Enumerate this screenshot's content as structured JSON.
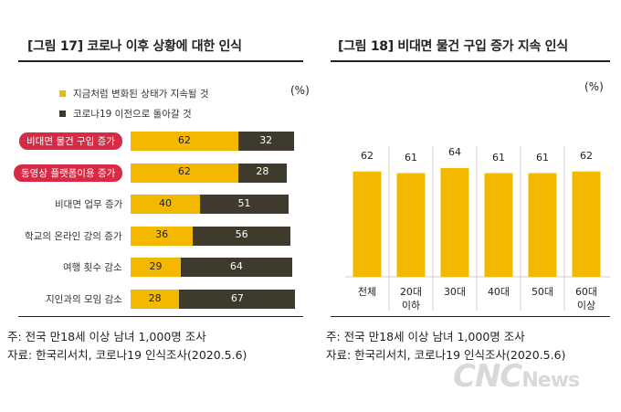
{
  "left": {
    "title": "[그림 17] 코로나 이후 상황에 대한 인식",
    "unit": "(%)",
    "legend": [
      {
        "label": "지금처럼 변화된 상태가 지속될 것",
        "color": "#f5b800"
      },
      {
        "label": "코로나19 이전으로 돌아갈 것",
        "color": "#3e3a2c"
      }
    ],
    "notes": [
      "주: 전국 만18세 이상 남녀 1,000명 조사",
      "자료: 한국리서치, 코로나19 인식조사(2020.5.6)"
    ]
  },
  "right": {
    "title": "[그림 18] 비대면 물건 구입 증가 지속 인식",
    "unit": "(%)",
    "notes": [
      "주: 전국 만18세 이상 남녀 1,000명 조사",
      "자료: 한국리서치, 코로나19 인식조사(2020.5.6)"
    ]
  },
  "watermark": {
    "main": "CNC",
    "sub": "News"
  },
  "chart_data": [
    {
      "type": "bar",
      "orientation": "horizontal",
      "stacked": true,
      "categories": [
        "비대면 물건 구입 증가",
        "동영상 플랫폼이용 증가",
        "비대면 업무 증가",
        "학교의 온라인 강의 증가",
        "여행 횟수 감소",
        "지인과의 모임 감소"
      ],
      "highlighted": [
        true,
        true,
        false,
        false,
        false,
        false
      ],
      "series": [
        {
          "name": "지금처럼 변화된 상태가 지속될 것",
          "values": [
            62,
            62,
            40,
            36,
            29,
            28
          ],
          "color": "#f5b800"
        },
        {
          "name": "코로나19 이전으로 돌아갈 것",
          "values": [
            32,
            28,
            51,
            56,
            64,
            67
          ],
          "color": "#3e3a2c"
        }
      ],
      "xlim": [
        0,
        100
      ]
    },
    {
      "type": "bar",
      "categories": [
        [
          "전체"
        ],
        [
          "20대",
          "이하"
        ],
        [
          "30대"
        ],
        [
          "40대"
        ],
        [
          "50대"
        ],
        [
          "60대",
          "이상"
        ]
      ],
      "values": [
        62,
        61,
        64,
        61,
        61,
        62
      ],
      "color": "#f5b800",
      "ylim": [
        0,
        100
      ]
    }
  ]
}
